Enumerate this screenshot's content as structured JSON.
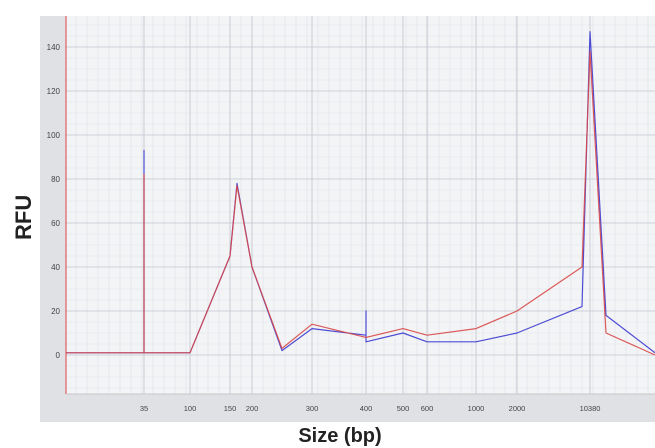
{
  "chart_data": {
    "type": "line",
    "xlabel": "Size (bp)",
    "ylabel": "RFU",
    "x_tick_labels": [
      "35",
      "100",
      "150",
      "200",
      "300",
      "400",
      "500",
      "600",
      "1000",
      "2000",
      "10380"
    ],
    "y_tick_labels": [
      0,
      20,
      40,
      60,
      80,
      100,
      120,
      140
    ],
    "ylim": [
      -20,
      150
    ],
    "grid": true,
    "series": [
      {
        "color": "#3b3bcf",
        "points": [
          [
            "start",
            1
          ],
          [
            "35",
            1
          ],
          [
            "35",
            93
          ],
          [
            "35",
            1
          ],
          [
            "100",
            1
          ],
          [
            "150",
            45
          ],
          [
            "150-200",
            78
          ],
          [
            "200",
            40
          ],
          [
            "200-300",
            2
          ],
          [
            "300",
            12
          ],
          [
            "400",
            9
          ],
          [
            "400",
            20
          ],
          [
            "400",
            6
          ],
          [
            "500",
            10
          ],
          [
            "600",
            6
          ],
          [
            "1000",
            6
          ],
          [
            "2000",
            10
          ],
          [
            "pre-10380",
            22
          ],
          [
            "10380",
            147
          ],
          [
            "post-10380",
            18
          ],
          [
            "end",
            1
          ]
        ]
      },
      {
        "color": "#d94848",
        "points": [
          [
            "start",
            1
          ],
          [
            "35",
            1
          ],
          [
            "35",
            82
          ],
          [
            "35",
            1
          ],
          [
            "100",
            1
          ],
          [
            "150",
            45
          ],
          [
            "150-200",
            77
          ],
          [
            "200",
            40
          ],
          [
            "200-300",
            3
          ],
          [
            "300",
            14
          ],
          [
            "400",
            8
          ],
          [
            "500",
            12
          ],
          [
            "600",
            9
          ],
          [
            "1000",
            12
          ],
          [
            "2000",
            20
          ],
          [
            "pre-10380",
            40
          ],
          [
            "10380",
            138
          ],
          [
            "post-10380",
            10
          ],
          [
            "end",
            0
          ]
        ]
      }
    ]
  }
}
